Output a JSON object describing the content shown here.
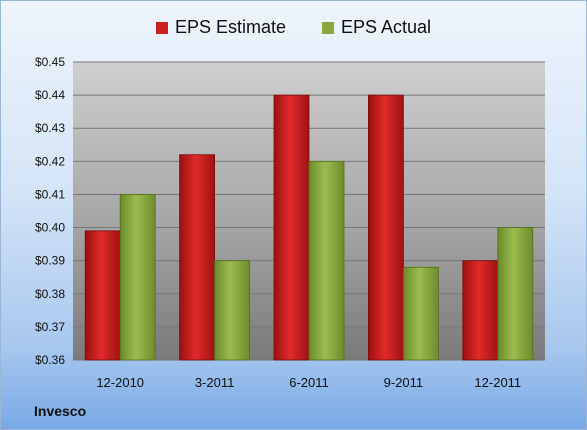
{
  "chart_data": {
    "type": "bar",
    "categories": [
      "12-2010",
      "3-2011",
      "6-2011",
      "9-2011",
      "12-2011"
    ],
    "series": [
      {
        "name": "EPS Estimate",
        "color": "#cc1f1f",
        "values": [
          0.399,
          0.422,
          0.44,
          0.44,
          0.39
        ]
      },
      {
        "name": "EPS Actual",
        "color": "#8aa83f",
        "values": [
          0.41,
          0.39,
          0.42,
          0.388,
          0.4
        ]
      }
    ],
    "ylim": [
      0.36,
      0.45
    ],
    "yticks": [
      "$0.45",
      "$0.44",
      "$0.43",
      "$0.42",
      "$0.41",
      "$0.40",
      "$0.39",
      "$0.38",
      "$0.37",
      "$0.36"
    ],
    "grid": true,
    "legend": "top-center"
  },
  "company": "Invesco"
}
